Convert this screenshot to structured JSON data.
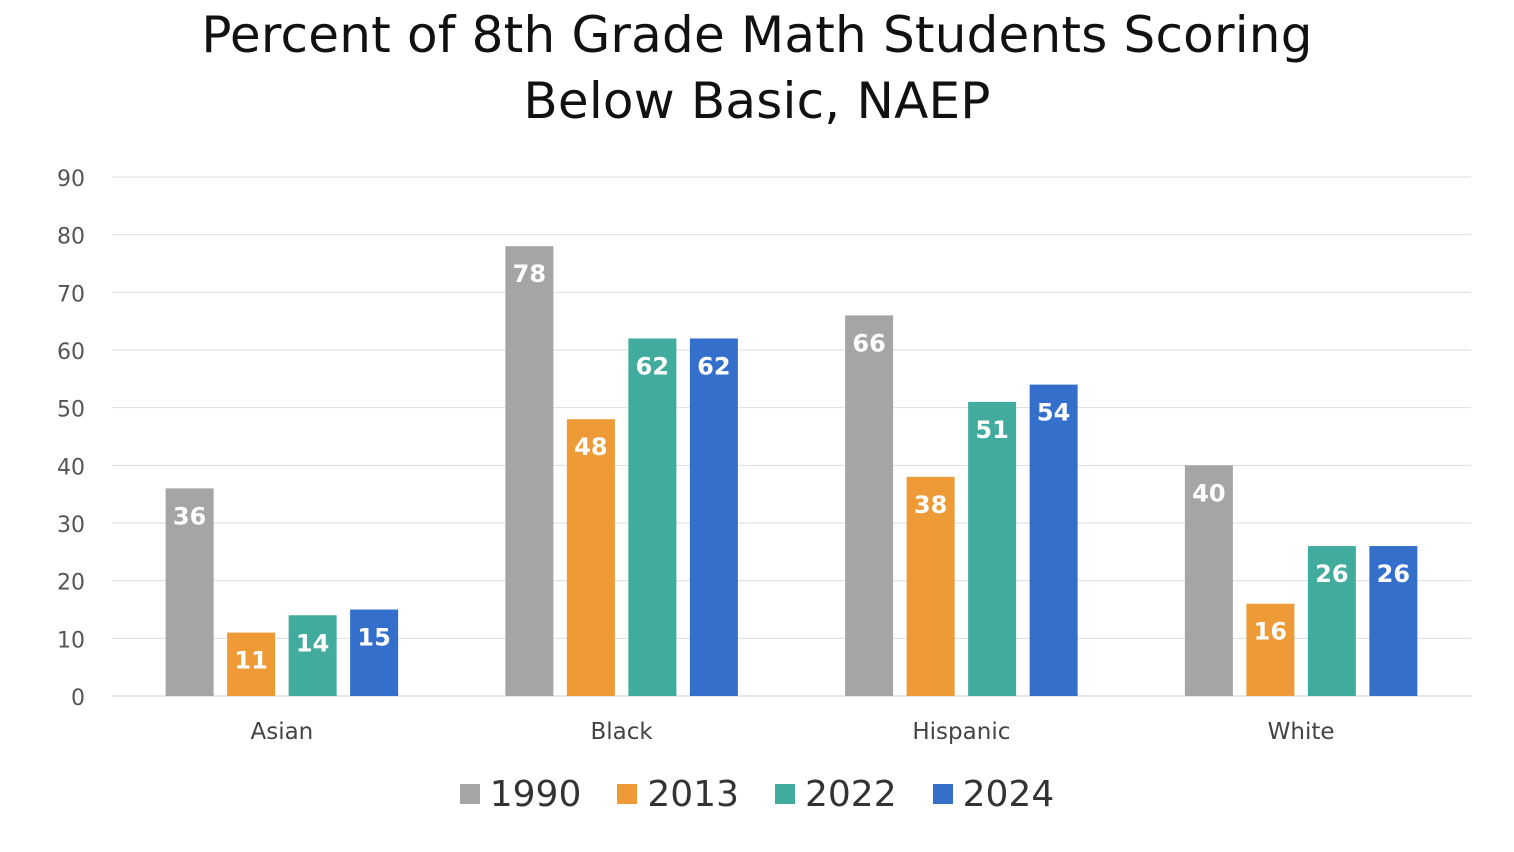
{
  "chart_data": {
    "type": "bar",
    "title": [
      "Percent of 8th Grade Math Students Scoring",
      "Below Basic, NAEP"
    ],
    "categories": [
      "Asian",
      "Black",
      "Hispanic",
      "White"
    ],
    "series": [
      {
        "name": "1990",
        "color": "#a5a5a5",
        "values": [
          36,
          78,
          66,
          40
        ]
      },
      {
        "name": "2013",
        "color": "#ed9a37",
        "values": [
          11,
          48,
          38,
          16
        ]
      },
      {
        "name": "2022",
        "color": "#41ab9e",
        "values": [
          14,
          62,
          51,
          26
        ]
      },
      {
        "name": "2024",
        "color": "#336fcb",
        "values": [
          15,
          62,
          54,
          26
        ]
      }
    ],
    "ylim": [
      0,
      90
    ],
    "yticks": [
      0,
      10,
      20,
      30,
      40,
      50,
      60,
      70,
      80,
      90
    ],
    "grid": true,
    "legend_position": "bottom",
    "data_labels": true
  }
}
